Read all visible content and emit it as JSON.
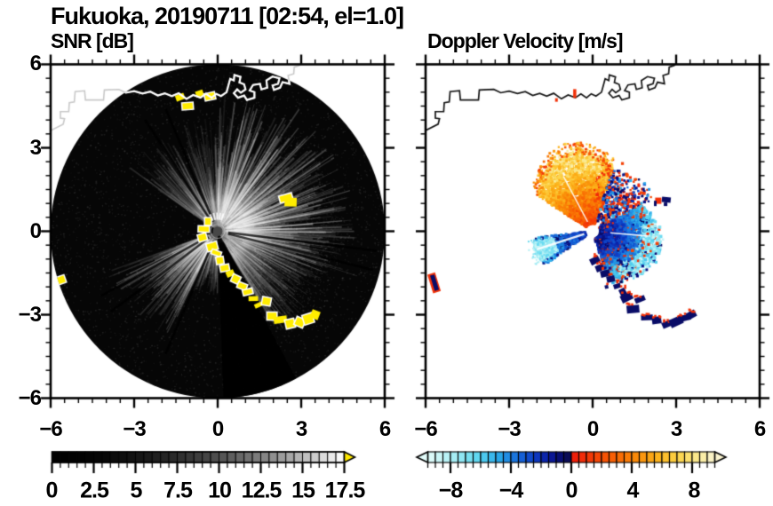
{
  "title": "Fukuoka, 20190711 [02:54, el=1.0]",
  "panels": {
    "snr": {
      "subtitle": "SNR [dB]",
      "x_tick_labels": [
        "−6",
        "−3",
        "0",
        "3",
        "6"
      ],
      "y_tick_labels": [
        "6",
        "3",
        "0",
        "−3",
        "−6"
      ]
    },
    "velocity": {
      "subtitle": "Doppler Velocity [m/s]",
      "x_tick_labels": [
        "−6",
        "−3",
        "0",
        "3",
        "6"
      ]
    }
  },
  "colorbars": {
    "snr": {
      "tick_labels": [
        "0",
        "2.5",
        "5",
        "7.5",
        "10",
        "12.5",
        "15",
        "17.5"
      ],
      "min": 0,
      "max": 17.5,
      "cell_step": 0.5,
      "gamma": 2.05,
      "over_arrow_color": "#ffe900"
    },
    "velocity": {
      "tick_labels": [
        "−8",
        "−4",
        "0",
        "4",
        "8"
      ],
      "min": -9.5,
      "max": 9.5,
      "cell_step": 0.5,
      "neg_stops": [
        [
          0,
          228,
          252,
          250
        ],
        [
          0.18,
          168,
          238,
          244
        ],
        [
          0.35,
          92,
          214,
          240
        ],
        [
          0.5,
          40,
          166,
          232
        ],
        [
          0.62,
          24,
          110,
          220
        ],
        [
          0.74,
          14,
          62,
          198
        ],
        [
          0.85,
          10,
          26,
          158
        ],
        [
          0.93,
          8,
          12,
          110
        ],
        [
          1,
          12,
          12,
          72
        ]
      ],
      "pos_stops": [
        [
          0,
          238,
          24,
          10
        ],
        [
          0.15,
          244,
          62,
          6
        ],
        [
          0.3,
          248,
          98,
          4
        ],
        [
          0.45,
          250,
          138,
          8
        ],
        [
          0.6,
          252,
          178,
          26
        ],
        [
          0.75,
          252,
          212,
          74
        ],
        [
          0.88,
          250,
          233,
          144
        ],
        [
          1,
          250,
          245,
          210
        ]
      ]
    }
  },
  "coastline": {
    "points": [
      [
        -6.0,
        3.62
      ],
      [
        -5.55,
        3.85
      ],
      [
        -5.5,
        4.05
      ],
      [
        -5.65,
        4.07
      ],
      [
        -5.65,
        4.3
      ],
      [
        -5.35,
        4.3
      ],
      [
        -5.33,
        4.62
      ],
      [
        -5.15,
        4.65
      ],
      [
        -5.12,
        5.02
      ],
      [
        -4.78,
        5.05
      ],
      [
        -4.75,
        4.72
      ],
      [
        -4.1,
        4.72
      ],
      [
        -4.07,
        5.08
      ],
      [
        -3.55,
        5.1
      ],
      [
        -3.3,
        4.98
      ],
      [
        -3.0,
        5.04
      ],
      [
        -2.7,
        4.95
      ],
      [
        -2.42,
        5.02
      ],
      [
        -2.15,
        4.88
      ],
      [
        -1.9,
        4.96
      ],
      [
        -1.65,
        4.86
      ],
      [
        -1.4,
        4.96
      ],
      [
        -1.12,
        4.76
      ],
      [
        -0.88,
        4.9
      ],
      [
        -0.62,
        4.8
      ],
      [
        -0.42,
        4.94
      ],
      [
        -0.22,
        4.8
      ],
      [
        -0.05,
        4.94
      ],
      [
        0.12,
        4.86
      ],
      [
        0.32,
        5.0
      ],
      [
        0.45,
        5.48
      ],
      [
        0.58,
        5.42
      ],
      [
        0.6,
        5.62
      ],
      [
        0.82,
        5.55
      ],
      [
        0.78,
        5.35
      ],
      [
        0.95,
        5.28
      ],
      [
        1.0,
        5.1
      ],
      [
        0.83,
        4.98
      ],
      [
        0.7,
        5.1
      ],
      [
        0.58,
        4.96
      ],
      [
        0.73,
        4.8
      ],
      [
        0.95,
        4.88
      ],
      [
        1.05,
        4.72
      ],
      [
        1.32,
        4.8
      ],
      [
        1.32,
        5.0
      ],
      [
        1.15,
        5.06
      ],
      [
        1.27,
        5.26
      ],
      [
        1.52,
        5.3
      ],
      [
        1.57,
        5.1
      ],
      [
        1.78,
        5.16
      ],
      [
        1.75,
        5.42
      ],
      [
        1.97,
        5.56
      ],
      [
        2.22,
        5.5
      ],
      [
        2.17,
        5.3
      ],
      [
        1.97,
        5.24
      ],
      [
        2.02,
        5.08
      ],
      [
        2.24,
        5.16
      ],
      [
        2.33,
        5.36
      ],
      [
        2.58,
        5.3
      ],
      [
        2.53,
        5.6
      ],
      [
        2.73,
        5.66
      ],
      [
        2.75,
        5.9
      ],
      [
        2.93,
        5.96
      ],
      [
        3.02,
        6.05
      ]
    ]
  },
  "chart_data": [
    {
      "type": "heatmap",
      "subtype": "radar_ppi",
      "panel": "snr",
      "title": "SNR [dB]",
      "xlim": [
        -6,
        6
      ],
      "ylim": [
        -6,
        6
      ],
      "major_ticks": [
        -6,
        -3,
        0,
        3,
        6
      ],
      "minor_tick_step": 0.5,
      "disc": {
        "center": [
          0,
          0
        ],
        "radius": 6
      },
      "bright_sector_deg": [
        -55,
        150
      ],
      "secondary_sector_deg": [
        180,
        250
      ],
      "blocked_sectors_deg": [
        [
          152,
          178
        ],
        [
          250,
          305
        ]
      ],
      "dark_rays_deg": [
        -33,
        -23,
        97,
        104,
        203,
        233,
        241
      ],
      "strong_echoes": [
        [
          -0.35,
          0.35
        ],
        [
          -0.5,
          0.08
        ],
        [
          -0.55,
          -0.22
        ],
        [
          -0.2,
          -0.55
        ],
        [
          -0.05,
          -0.78
        ],
        [
          0.08,
          -1.05
        ],
        [
          0.25,
          -1.32
        ],
        [
          0.45,
          -1.52
        ],
        [
          0.65,
          -1.72
        ],
        [
          0.88,
          -1.97
        ],
        [
          1.08,
          -2.18
        ],
        [
          1.28,
          -2.42
        ],
        [
          1.5,
          -2.64
        ],
        [
          1.75,
          -2.52
        ],
        [
          1.95,
          -3.05
        ],
        [
          2.25,
          -3.18
        ],
        [
          2.6,
          -3.32
        ],
        [
          2.95,
          -3.27
        ],
        [
          3.25,
          -3.15
        ],
        [
          3.5,
          -3.0
        ],
        [
          2.45,
          1.2
        ],
        [
          2.62,
          1.05
        ],
        [
          -5.72,
          -1.78
        ],
        [
          -1.35,
          4.82
        ],
        [
          -1.08,
          4.5
        ],
        [
          -0.65,
          4.95
        ],
        [
          -0.28,
          4.85
        ]
      ],
      "colorbar_ref": "snr"
    },
    {
      "type": "heatmap",
      "subtype": "radar_ppi",
      "panel": "velocity",
      "title": "Doppler Velocity [m/s]",
      "xlim": [
        -6,
        6
      ],
      "ylim": [
        -6,
        6
      ],
      "major_ticks": [
        -6,
        -3,
        0,
        3,
        6
      ],
      "minor_tick_step": 0.5,
      "center_hole_radius": 0.22,
      "fans": {
        "positive": {
          "az_deg": [
            -57,
            18
          ],
          "r": [
            0.25,
            2.8
          ],
          "v_range_ms": [
            0.5,
            9
          ]
        },
        "mixed": {
          "az_deg": [
            18,
            62
          ],
          "r": [
            0.4,
            2.7
          ]
        },
        "negative": {
          "az_deg": [
            62,
            162
          ],
          "r": [
            0.25,
            2.35
          ],
          "v_range_ms": [
            -8.8,
            -0.4
          ]
        },
        "wsw": {
          "az_deg": [
            235,
            264
          ],
          "r": [
            0.25,
            2.1
          ],
          "v_range_ms": [
            -8.8,
            -1.5
          ]
        }
      },
      "hard_targets": {
        "inner_arc": [
          [
            0.08,
            -1.05
          ],
          [
            0.25,
            -1.32
          ],
          [
            0.45,
            -1.52
          ],
          [
            0.65,
            -1.72
          ],
          [
            0.88,
            -1.97
          ],
          [
            1.08,
            -2.18
          ]
        ],
        "outer_arc": [
          [
            0.5,
            -2.0
          ],
          [
            1.22,
            -2.38
          ],
          [
            1.45,
            -2.8
          ],
          [
            1.7,
            -2.45
          ],
          [
            1.95,
            -3.1
          ],
          [
            2.3,
            -3.2
          ],
          [
            2.65,
            -3.35
          ],
          [
            3.0,
            -3.25
          ],
          [
            3.3,
            -3.12
          ],
          [
            3.55,
            -3.0
          ]
        ],
        "east": [
          [
            2.55,
            1.13
          ],
          [
            2.25,
            1.0
          ],
          [
            2.62,
            0.97
          ]
        ],
        "west_streak": [
          [
            -5.68,
            -1.85
          ]
        ],
        "coast_spots": [
          [
            -0.65,
            4.95
          ],
          [
            -1.3,
            4.72
          ]
        ]
      },
      "colorbar_ref": "velocity"
    }
  ]
}
